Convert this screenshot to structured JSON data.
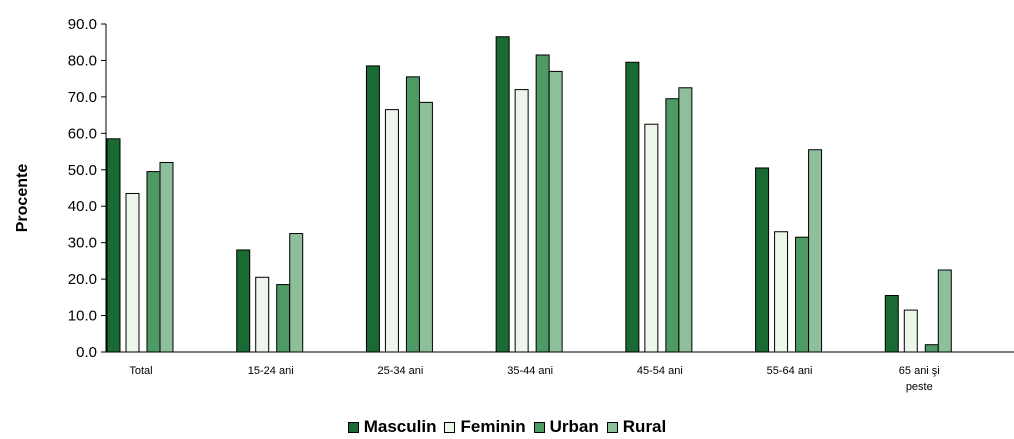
{
  "chart_data": {
    "type": "bar",
    "ylabel": "Procente",
    "xlabel": "",
    "ylim": [
      0,
      90
    ],
    "yticks": [
      "0.0",
      "10.0",
      "20.0",
      "30.0",
      "40.0",
      "50.0",
      "60.0",
      "70.0",
      "80.0",
      "90.0"
    ],
    "categories": [
      [
        "Total"
      ],
      [
        "15-24 ani"
      ],
      [
        "25-34 ani"
      ],
      [
        "35-44 ani"
      ],
      [
        "45-54 ani"
      ],
      [
        "55-64 ani"
      ],
      [
        "65 ani şi",
        "peste"
      ]
    ],
    "series": [
      {
        "name": "Masculin",
        "color": "#1a6b33",
        "values": [
          58.5,
          28.0,
          78.5,
          86.5,
          79.5,
          50.5,
          15.5
        ]
      },
      {
        "name": "Feminin",
        "color": "#edf6ea",
        "values": [
          43.5,
          20.5,
          66.5,
          72.0,
          62.5,
          33.0,
          11.5
        ]
      },
      {
        "name": "Urban",
        "color": "#4e9a64",
        "values": [
          49.5,
          18.5,
          75.5,
          81.5,
          69.5,
          31.5,
          2.0
        ]
      },
      {
        "name": "Rural",
        "color": "#8dbf9a",
        "values": [
          52.0,
          32.5,
          68.5,
          77.0,
          72.5,
          55.5,
          22.5
        ]
      }
    ],
    "grid": false,
    "legend_position": "bottom"
  }
}
